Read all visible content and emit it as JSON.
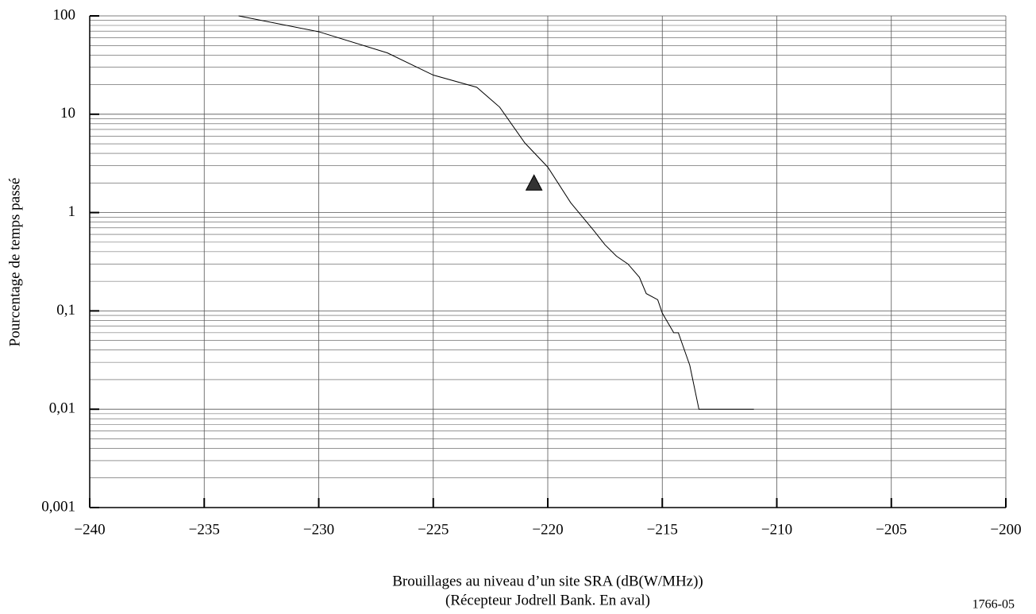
{
  "chart_data": {
    "type": "line",
    "x": [
      -233.5,
      -230,
      -227,
      -225,
      -223.1,
      -222.1,
      -221,
      -220,
      -219,
      -218,
      -217.5,
      -217,
      -216.5,
      -216,
      -215.7,
      -215.2,
      -215,
      -214.5,
      -214.3,
      -213.8,
      -213.4,
      -211
    ],
    "values": [
      100,
      69,
      42,
      25,
      18.8,
      11.8,
      5.1,
      2.9,
      1.26,
      0.66,
      0.47,
      0.36,
      0.3,
      0.22,
      0.15,
      0.13,
      0.095,
      0.06,
      0.06,
      0.028,
      0.01,
      0.01
    ],
    "color": "#000000",
    "marker_x": [
      -220.6
    ],
    "marker_values": [
      2.0
    ],
    "marker_color": "#333333",
    "xlim": [
      -240,
      -200
    ],
    "xticks": [
      {
        "value": -240,
        "label": "−240"
      },
      {
        "value": -235,
        "label": "−235"
      },
      {
        "value": -230,
        "label": "−230"
      },
      {
        "value": -225,
        "label": "−225"
      },
      {
        "value": -220,
        "label": "−220"
      },
      {
        "value": -215,
        "label": "−215"
      },
      {
        "value": -210,
        "label": "−210"
      },
      {
        "value": -205,
        "label": "−205"
      },
      {
        "value": -200,
        "label": "−200"
      }
    ],
    "ylim": [
      0.001,
      100
    ],
    "ylog": true,
    "yticks": [
      {
        "value": 0.001,
        "label": "0,001"
      },
      {
        "value": 0.01,
        "label": "0,01"
      },
      {
        "value": 0.1,
        "label": "0,1"
      },
      1,
      10,
      100
    ],
    "grid": true,
    "ylabel": "Pourcentage de temps passé",
    "xlabel": "Brouillages au niveau d’un site SRA (dB(W/MHz))",
    "xlabel2": "(Récepteur Jodrell Bank. En aval)",
    "figure_id": "1766-05"
  }
}
